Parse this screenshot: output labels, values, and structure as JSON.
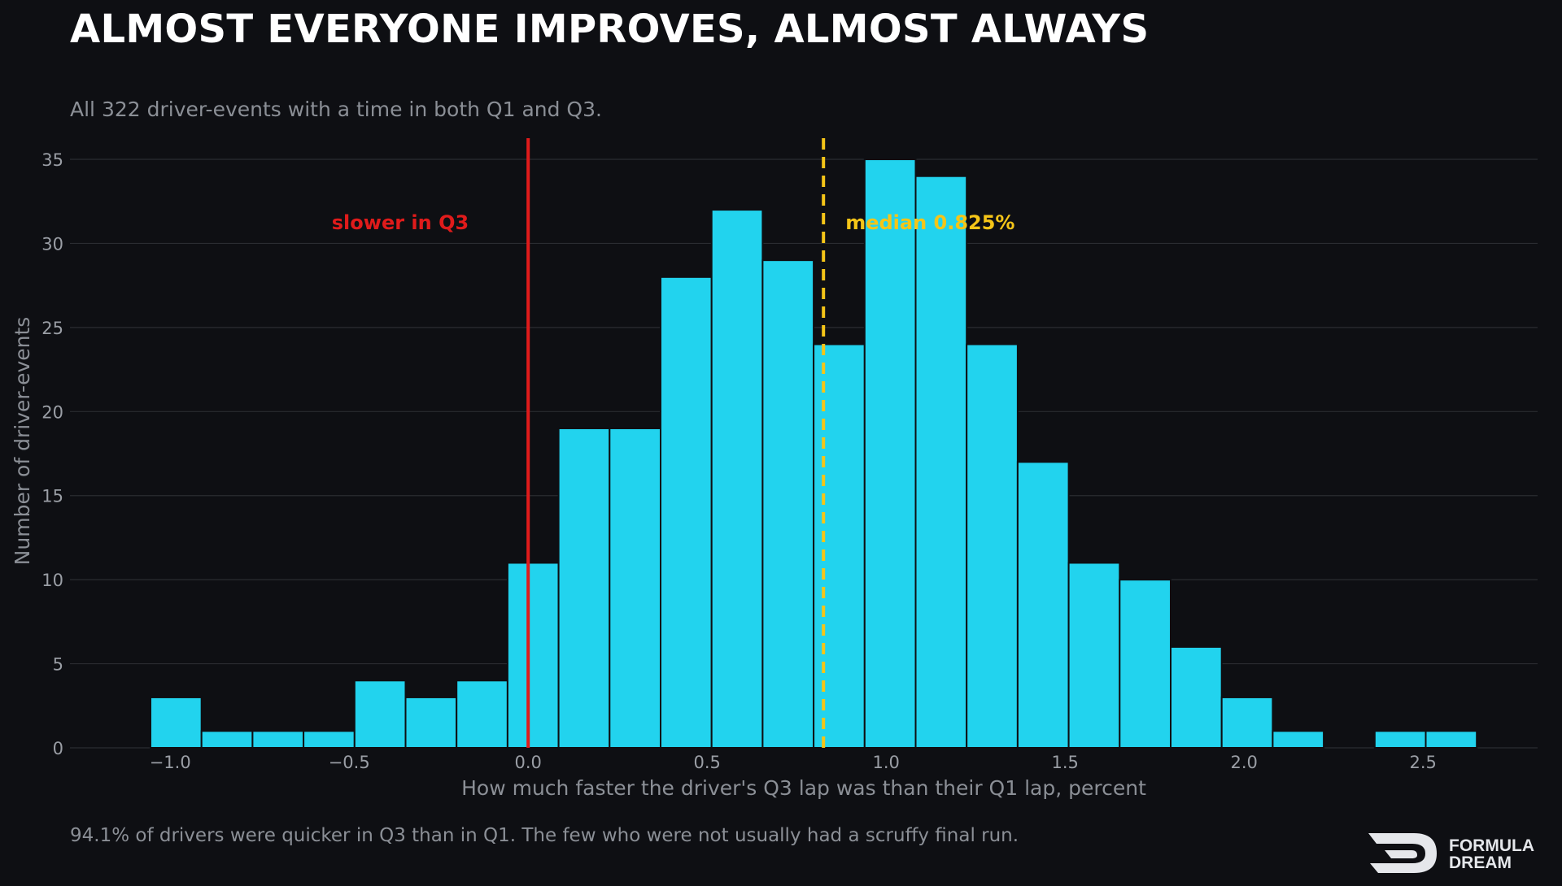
{
  "header": {
    "title": "ALMOST EVERYONE IMPROVES, ALMOST ALWAYS",
    "subtitle": "All 322 driver-events with a time in both Q1 and Q3."
  },
  "footer": {
    "note": "94.1% of drivers were quicker in Q3 than in Q1. The few who were not usually had a scruffy final run.",
    "brand_line1": "FORMULA",
    "brand_line2": "DREAM"
  },
  "chart_data": {
    "type": "bar",
    "title": "ALMOST EVERYONE IMPROVES, ALMOST ALWAYS",
    "subtitle": "All 322 driver-events with a time in both Q1 and Q3.",
    "xlabel": "How much faster the driver's Q3 lap was than their Q1 lap, percent",
    "ylabel": "Number of driver-events",
    "bin_width": 0.1425,
    "bins": [
      {
        "start": -1.055,
        "count": 3
      },
      {
        "start": -0.9125,
        "count": 1
      },
      {
        "start": -0.77,
        "count": 1
      },
      {
        "start": -0.6275,
        "count": 1
      },
      {
        "start": -0.485,
        "count": 4
      },
      {
        "start": -0.3425,
        "count": 3
      },
      {
        "start": -0.2,
        "count": 4
      },
      {
        "start": -0.0575,
        "count": 11
      },
      {
        "start": 0.085,
        "count": 19
      },
      {
        "start": 0.2275,
        "count": 19
      },
      {
        "start": 0.37,
        "count": 28
      },
      {
        "start": 0.5125,
        "count": 32
      },
      {
        "start": 0.655,
        "count": 29
      },
      {
        "start": 0.7975,
        "count": 24
      },
      {
        "start": 0.94,
        "count": 35
      },
      {
        "start": 1.0825,
        "count": 34
      },
      {
        "start": 1.225,
        "count": 24
      },
      {
        "start": 1.3675,
        "count": 17
      },
      {
        "start": 1.51,
        "count": 11
      },
      {
        "start": 1.6525,
        "count": 10
      },
      {
        "start": 1.795,
        "count": 6
      },
      {
        "start": 1.9375,
        "count": 3
      },
      {
        "start": 2.08,
        "count": 1
      },
      {
        "start": 2.2225,
        "count": 0
      },
      {
        "start": 2.365,
        "count": 1
      },
      {
        "start": 2.5075,
        "count": 1
      }
    ],
    "xlim": [
      -1.28,
      2.82
    ],
    "ylim": [
      0,
      36.5
    ],
    "x_ticks": [
      -1.0,
      -0.5,
      0.0,
      0.5,
      1.0,
      1.5,
      2.0,
      2.5
    ],
    "x_tick_labels": [
      "−1.0",
      "−0.5",
      "0.0",
      "0.5",
      "1.0",
      "1.5",
      "2.0",
      "2.5"
    ],
    "y_ticks": [
      0,
      5,
      10,
      15,
      20,
      25,
      30,
      35
    ],
    "grid": "horizontal",
    "annotations": [
      {
        "kind": "vline",
        "x": 0.0,
        "style": "solid",
        "color": "#e01b1b",
        "label": "slower in Q3",
        "label_side": "left"
      },
      {
        "kind": "vline",
        "x": 0.825,
        "style": "dashed",
        "color": "#f5c518",
        "label": "median 0.825%",
        "label_side": "right"
      }
    ],
    "colors": {
      "bar": "#22d3ee",
      "bar_edge": "#0e0f13",
      "grid": "#2a2c31",
      "tick_text": "#9a9ea5",
      "axis_label": "#8b8f96"
    }
  }
}
